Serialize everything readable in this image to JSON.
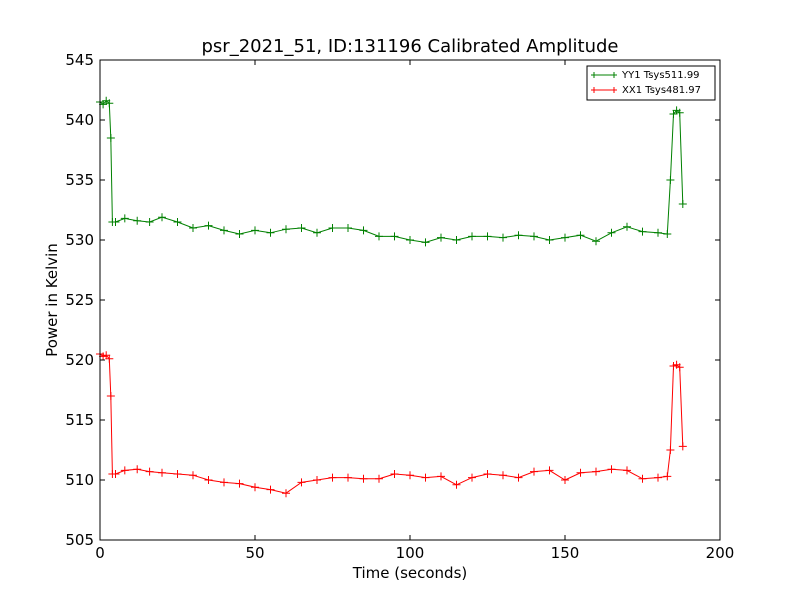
{
  "chart_data": {
    "type": "line",
    "title": "psr_2021_51, ID:131196 Calibrated Amplitude",
    "xlabel": "Time (seconds)",
    "ylabel": "Power in Kelvin",
    "xlim": [
      0,
      200
    ],
    "ylim": [
      505,
      545
    ],
    "xticks": [
      0,
      50,
      100,
      150,
      200
    ],
    "yticks": [
      505,
      510,
      515,
      520,
      525,
      530,
      535,
      540,
      545
    ],
    "legend_position": "top-right",
    "series": [
      {
        "name": "YY1 Tsys511.99",
        "color": "#008000",
        "marker": "+",
        "x": [
          0,
          1,
          2,
          3,
          3.5,
          4,
          5,
          8,
          12,
          16,
          20,
          25,
          30,
          35,
          40,
          45,
          50,
          55,
          60,
          65,
          70,
          75,
          80,
          85,
          90,
          95,
          100,
          105,
          110,
          115,
          120,
          125,
          130,
          135,
          140,
          145,
          150,
          155,
          160,
          165,
          170,
          175,
          180,
          183,
          184,
          185,
          186,
          187,
          188
        ],
        "y": [
          541.5,
          541.3,
          541.6,
          541.4,
          538.5,
          531.5,
          531.5,
          531.8,
          531.6,
          531.5,
          531.9,
          531.5,
          531.0,
          531.2,
          530.8,
          530.5,
          530.8,
          530.6,
          530.9,
          531.0,
          530.6,
          531.0,
          531.0,
          530.8,
          530.3,
          530.3,
          530.0,
          529.8,
          530.2,
          530.0,
          530.3,
          530.3,
          530.2,
          530.4,
          530.3,
          530.0,
          530.2,
          530.4,
          529.9,
          530.6,
          531.1,
          530.7,
          530.6,
          530.5,
          535.0,
          540.5,
          540.8,
          540.6,
          533.0
        ]
      },
      {
        "name": "XX1 Tsys481.97",
        "color": "#ff0000",
        "marker": "+",
        "x": [
          0,
          1,
          2,
          3,
          3.5,
          4,
          5,
          8,
          12,
          16,
          20,
          25,
          30,
          35,
          40,
          45,
          50,
          55,
          60,
          65,
          70,
          75,
          80,
          85,
          90,
          95,
          100,
          105,
          110,
          115,
          120,
          125,
          130,
          135,
          140,
          145,
          150,
          155,
          160,
          165,
          170,
          175,
          180,
          183,
          184,
          185,
          186,
          187,
          188
        ],
        "y": [
          520.5,
          520.3,
          520.4,
          520.1,
          517.0,
          510.5,
          510.5,
          510.8,
          510.9,
          510.7,
          510.6,
          510.5,
          510.4,
          510.0,
          509.8,
          509.7,
          509.4,
          509.2,
          508.9,
          509.8,
          510.0,
          510.2,
          510.2,
          510.1,
          510.1,
          510.5,
          510.4,
          510.2,
          510.3,
          509.6,
          510.2,
          510.5,
          510.4,
          510.2,
          510.7,
          510.8,
          510.0,
          510.6,
          510.7,
          510.9,
          510.8,
          510.1,
          510.2,
          510.3,
          512.5,
          519.5,
          519.6,
          519.4,
          512.8
        ]
      }
    ]
  }
}
